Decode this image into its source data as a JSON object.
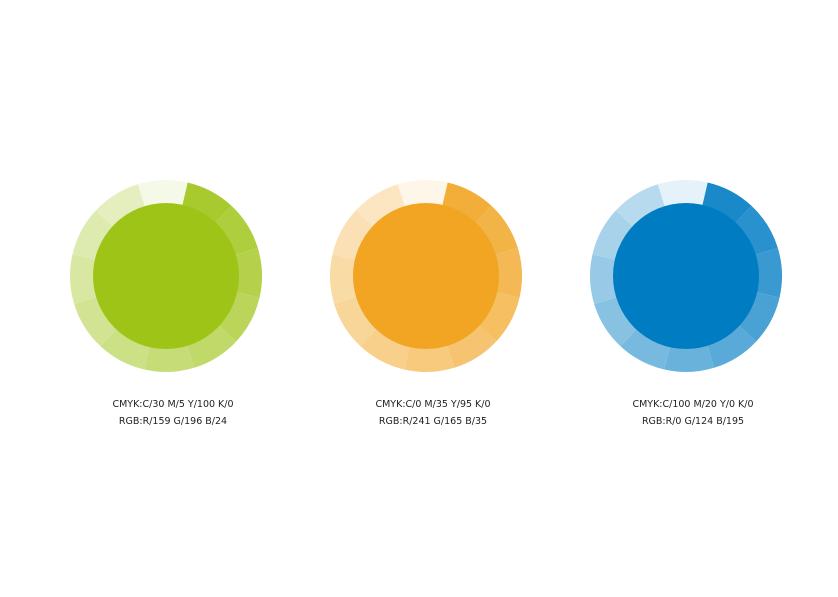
{
  "swatches": [
    {
      "color": "#9fc418",
      "cmyk": "CMYK:C/30  M/5  Y/100  K/0",
      "rgb": "RGB:R/159  G/196  B/24"
    },
    {
      "color": "#f1a523",
      "cmyk": "CMYK:C/0  M/35  Y/95  K/0",
      "rgb": "RGB:R/241  G/165  B/35"
    },
    {
      "color": "#007cc3",
      "cmyk": "CMYK:C/100  M/20  Y/0  K/0",
      "rgb": "RGB:R/0  G/124  B/195"
    }
  ]
}
